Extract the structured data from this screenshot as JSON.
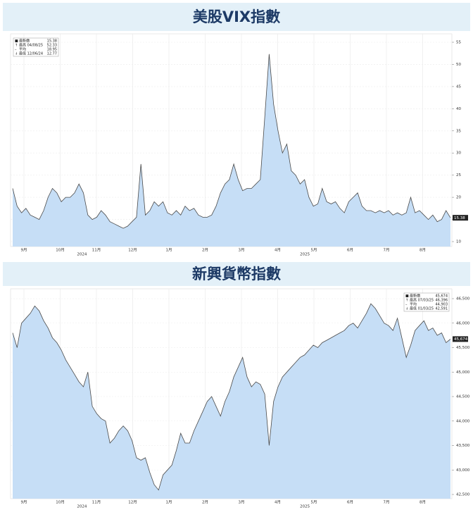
{
  "chart_data": [
    {
      "type": "area",
      "title": "美股VIX指數",
      "color": "#c6def6",
      "line_color": "#4a4a4a",
      "values": [
        22,
        18,
        16.5,
        17.5,
        16,
        15.5,
        15,
        17,
        20,
        22,
        21,
        19,
        20,
        20,
        21,
        23,
        21,
        16,
        15,
        15.5,
        17,
        16,
        14.5,
        14,
        13.5,
        13,
        13.5,
        14.5,
        15.5,
        27.5,
        16,
        17,
        19,
        18,
        19,
        16.5,
        16,
        17,
        16,
        18,
        17,
        17.5,
        16,
        15.5,
        15.5,
        16,
        18,
        21,
        23,
        24,
        27.5,
        24,
        21.5,
        22,
        22,
        23,
        24,
        38,
        52.33,
        41,
        35,
        30,
        32,
        26,
        25,
        23,
        24,
        20,
        18,
        18.5,
        22,
        19,
        18.5,
        19,
        17.5,
        16.5,
        19,
        20,
        21,
        18,
        17,
        17,
        16.5,
        17,
        16.5,
        17,
        16,
        16.5,
        16,
        16.5,
        20,
        16.5,
        17,
        16,
        15,
        16,
        14.5,
        15,
        17,
        15.38
      ],
      "ylim": [
        10,
        55
      ],
      "yticks": [
        10,
        15,
        20,
        25,
        30,
        35,
        40,
        45,
        50,
        55
      ],
      "grid": true,
      "x_labels": [
        "9月",
        "10月",
        "11月",
        "12月",
        "1月",
        "2月",
        "3月",
        "4月",
        "5月",
        "6月",
        "7月",
        "8月"
      ],
      "year_labels": [
        "2024",
        "2025"
      ],
      "latest": {
        "value": 15.38,
        "label": "15.38"
      },
      "legend": [
        {
          "text": "最新價",
          "value": "15.38"
        },
        {
          "text": "最高 04/08/25",
          "value": "52.33"
        },
        {
          "text": "平均",
          "value": "18.95"
        },
        {
          "text": "最低 12/06/24",
          "value": "12.77"
        }
      ],
      "legend_corner": "top-left"
    },
    {
      "type": "area",
      "title": "新興貨幣指數",
      "color": "#c6def6",
      "line_color": "#4a4a4a",
      "values": [
        45800,
        45500,
        46000,
        46100,
        46200,
        46350,
        46250,
        46050,
        45900,
        45700,
        45600,
        45450,
        45250,
        45100,
        44950,
        44800,
        44700,
        45000,
        44300,
        44150,
        44050,
        44000,
        43550,
        43650,
        43800,
        43900,
        43800,
        43600,
        43250,
        43200,
        43250,
        42950,
        42700,
        42591,
        42900,
        43000,
        43100,
        43400,
        43750,
        43550,
        43550,
        43800,
        44000,
        44200,
        44400,
        44500,
        44300,
        44100,
        44400,
        44600,
        44900,
        45100,
        45300,
        44900,
        44700,
        44800,
        44750,
        44550,
        43500,
        44400,
        44700,
        44900,
        45000,
        45100,
        45200,
        45300,
        45350,
        45450,
        45550,
        45500,
        45600,
        45650,
        45700,
        45750,
        45800,
        45850,
        45950,
        46000,
        45900,
        46050,
        46200,
        46396,
        46300,
        46150,
        46000,
        45950,
        45850,
        46100,
        45700,
        45300,
        45550,
        45850,
        45950,
        46050,
        45850,
        45900,
        45750,
        45800,
        45600,
        45674
      ],
      "ylim": [
        42500,
        46500
      ],
      "yticks": [
        {
          "value": 42500,
          "label": "42,500"
        },
        {
          "value": 43000,
          "label": "43,000"
        },
        {
          "value": 43500,
          "label": "43,500"
        },
        {
          "value": 44000,
          "label": "44,000"
        },
        {
          "value": 44500,
          "label": "44,500"
        },
        {
          "value": 45000,
          "label": "45,000"
        },
        {
          "value": 45500,
          "label": "45,500"
        },
        {
          "value": 46000,
          "label": "46,000"
        },
        {
          "value": 46500,
          "label": "46,500"
        }
      ],
      "grid": true,
      "x_labels": [
        "9月",
        "10月",
        "11月",
        "12月",
        "1月",
        "2月",
        "3月",
        "4月",
        "5月",
        "6月",
        "7月",
        "8月"
      ],
      "year_labels": [
        "2024",
        "2025"
      ],
      "latest": {
        "value": 45674,
        "label": "45,674"
      },
      "legend": [
        {
          "text": "最新價",
          "value": "45,674"
        },
        {
          "text": "最高 07/03/25",
          "value": "46,396"
        },
        {
          "text": "平均",
          "value": "44,903"
        },
        {
          "text": "最低 01/03/25",
          "value": "42,591"
        }
      ],
      "legend_corner": "top-right"
    }
  ]
}
